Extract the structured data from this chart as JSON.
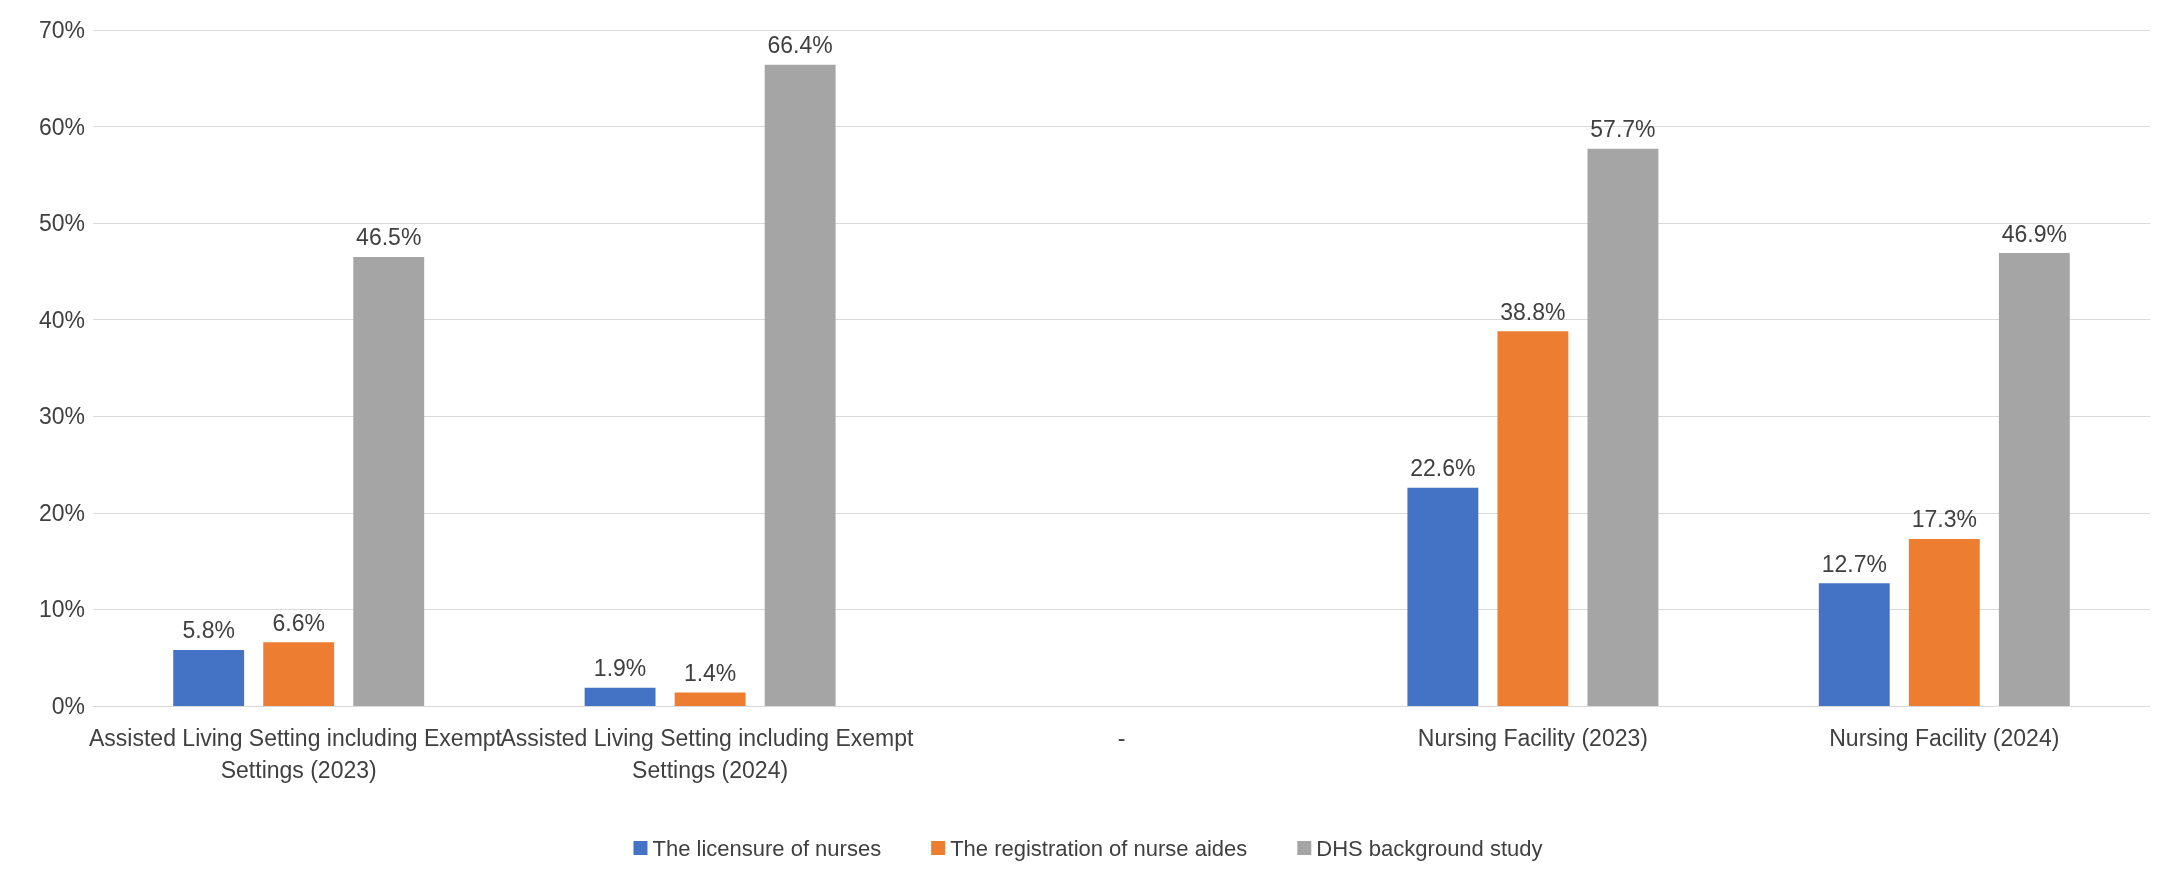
{
  "chart_data": {
    "type": "bar",
    "categories": [
      "Assisted Living Setting including Exempt Settings (2023)",
      "Assisted Living Setting including Exempt Settings (2024)",
      "-",
      "Nursing Facility (2023)",
      "Nursing Facility (2024)"
    ],
    "series": [
      {
        "name": "The licensure of nurses",
        "color": "#4472c4",
        "values": [
          5.8,
          1.9,
          null,
          22.6,
          12.7
        ],
        "value_labels": [
          "5.8%",
          "1.9%",
          null,
          "22.6%",
          "12.7%"
        ]
      },
      {
        "name": "The registration of nurse aides",
        "color": "#ed7d31",
        "values": [
          6.6,
          1.4,
          null,
          38.8,
          17.3
        ],
        "value_labels": [
          "6.6%",
          "1.4%",
          null,
          "38.8%",
          "17.3%"
        ]
      },
      {
        "name": "DHS background study",
        "color": "#a5a5a5",
        "values": [
          46.5,
          66.4,
          null,
          57.7,
          46.9
        ],
        "value_labels": [
          "46.5%",
          "66.4%",
          null,
          "57.7%",
          "46.9%"
        ]
      }
    ],
    "ylim": [
      0,
      70
    ],
    "yticks": [
      {
        "value": 0,
        "label": "0%"
      },
      {
        "value": 10,
        "label": "10%"
      },
      {
        "value": 20,
        "label": "20%"
      },
      {
        "value": 30,
        "label": "30%"
      },
      {
        "value": 40,
        "label": "40%"
      },
      {
        "value": 50,
        "label": "50%"
      },
      {
        "value": 60,
        "label": "60%"
      },
      {
        "value": 70,
        "label": "70%"
      }
    ],
    "grid": "y",
    "legend": "bottom"
  }
}
